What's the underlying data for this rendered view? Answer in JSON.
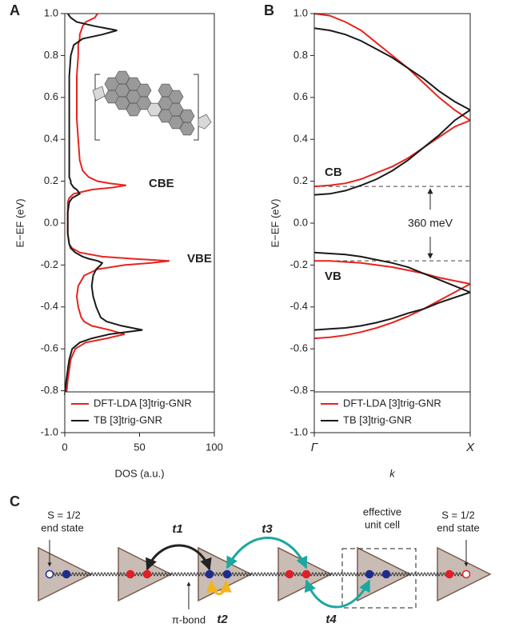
{
  "panels": [
    "A",
    "B",
    "C"
  ],
  "chart_data": [
    {
      "type": "line",
      "orientation": "horizontal",
      "x_label": "E−EF (eV)",
      "y_label": "DOS (a.u.)",
      "x": [
        -0.82,
        -0.75,
        -0.7,
        -0.65,
        -0.6,
        -0.57,
        -0.55,
        -0.53,
        -0.51,
        -0.49,
        -0.47,
        -0.45,
        -0.4,
        -0.35,
        -0.3,
        -0.25,
        -0.22,
        -0.2,
        -0.19,
        -0.18,
        -0.17,
        -0.16,
        -0.14,
        -0.12,
        -0.1,
        -0.05,
        0,
        0.05,
        0.1,
        0.12,
        0.14,
        0.16,
        0.17,
        0.18,
        0.19,
        0.2,
        0.22,
        0.25,
        0.3,
        0.4,
        0.5,
        0.6,
        0.7,
        0.8,
        0.85,
        0.88,
        0.9,
        0.92,
        0.94,
        0.96,
        0.98,
        1.0
      ],
      "xlim": [
        -1,
        1
      ],
      "xticks": [
        {
          "value": 1,
          "label": "1.0"
        },
        0.8,
        0.6,
        0.4,
        0.2,
        {
          "value": 0,
          "label": "0.0"
        },
        -0.2,
        -0.4,
        -0.6,
        -0.8,
        {
          "value": -1,
          "label": "-1.0"
        }
      ],
      "ylim": [
        0,
        100
      ],
      "yticks": [
        0,
        50,
        100
      ],
      "legend": "lower left",
      "series": [
        {
          "name": "DFT-LDA [3]trig-GNR",
          "color": "#e8231f",
          "values": [
            1,
            2,
            3,
            4,
            7,
            14,
            28,
            40,
            30,
            18,
            13,
            11,
            9,
            8,
            9,
            13,
            22,
            40,
            58,
            70,
            45,
            25,
            10,
            5,
            3,
            2,
            2,
            2,
            2,
            3,
            6,
            18,
            32,
            41,
            30,
            22,
            16,
            12,
            10,
            9,
            8,
            8,
            8,
            9,
            9,
            10,
            10,
            11,
            12,
            14,
            20,
            22
          ]
        },
        {
          "name": "TB [3]trig-GNR",
          "color": "#1a1a1a",
          "values": [
            0,
            1,
            2,
            3,
            5,
            10,
            18,
            30,
            52,
            38,
            28,
            24,
            21,
            19,
            18,
            19,
            21,
            24,
            25,
            22,
            16,
            12,
            7,
            4,
            3,
            2,
            2,
            2,
            3,
            5,
            10,
            8,
            6,
            5,
            4,
            4,
            3,
            3,
            3,
            3,
            3,
            3,
            3,
            4,
            6,
            12,
            25,
            35,
            20,
            8,
            4,
            2
          ]
        }
      ],
      "annotations": [
        "CBE",
        "VBE"
      ]
    },
    {
      "type": "line",
      "x_label": "k",
      "y_label": "E−EF (eV)",
      "x": [
        0,
        0.1,
        0.2,
        0.3,
        0.4,
        0.5,
        0.6,
        0.7,
        0.8,
        0.9,
        1
      ],
      "xlim": [
        0,
        1
      ],
      "xticks": [
        {
          "value": 0,
          "label": "Γ"
        },
        {
          "value": 1,
          "label": "X"
        }
      ],
      "ylim": [
        -1,
        1
      ],
      "yticks": [
        {
          "value": 1,
          "label": "1.0"
        },
        0.8,
        0.6,
        0.4,
        0.2,
        {
          "value": 0,
          "label": "0.0"
        },
        -0.2,
        -0.4,
        -0.6,
        -0.8,
        {
          "value": -1,
          "label": "-1.0"
        }
      ],
      "legend": "lower left",
      "series": [
        {
          "name": "DFT-LDA [3]trig-GNR",
          "color": "#e8231f",
          "bands": [
            [
              0.175,
              0.18,
              0.19,
              0.21,
              0.24,
              0.27,
              0.31,
              0.36,
              0.41,
              0.46,
              0.49
            ],
            [
              1.0,
              0.99,
              0.96,
              0.92,
              0.86,
              0.8,
              0.74,
              0.67,
              0.6,
              0.54,
              0.49
            ],
            [
              -0.18,
              -0.18,
              -0.185,
              -0.19,
              -0.2,
              -0.21,
              -0.225,
              -0.24,
              -0.26,
              -0.275,
              -0.29
            ],
            [
              -0.55,
              -0.545,
              -0.535,
              -0.52,
              -0.5,
              -0.475,
              -0.445,
              -0.41,
              -0.37,
              -0.33,
              -0.29
            ]
          ]
        },
        {
          "name": "TB [3]trig-GNR",
          "color": "#1a1a1a",
          "bands": [
            [
              0.135,
              0.14,
              0.155,
              0.18,
              0.21,
              0.25,
              0.3,
              0.36,
              0.42,
              0.49,
              0.54
            ],
            [
              0.93,
              0.92,
              0.9,
              0.87,
              0.83,
              0.79,
              0.74,
              0.69,
              0.63,
              0.58,
              0.54
            ],
            [
              -0.14,
              -0.145,
              -0.15,
              -0.16,
              -0.175,
              -0.19,
              -0.21,
              -0.24,
              -0.27,
              -0.3,
              -0.33
            ],
            [
              -0.51,
              -0.505,
              -0.5,
              -0.49,
              -0.475,
              -0.455,
              -0.43,
              -0.41,
              -0.38,
              -0.355,
              -0.33
            ]
          ]
        }
      ],
      "reference_lines": [
        0.175,
        -0.18
      ],
      "annotations": [
        "CB",
        "VB",
        "360 meV"
      ]
    }
  ],
  "diagram": {
    "end_states": [
      {
        "spin": "S = 1/2",
        "text": "end state"
      },
      {
        "spin": "S = 1/2",
        "text": "end state"
      }
    ],
    "hoppings": [
      "t1",
      "t2",
      "t3",
      "t4"
    ],
    "unit_cell": [
      "effective",
      "unit cell"
    ],
    "bond": "π-bond"
  }
}
